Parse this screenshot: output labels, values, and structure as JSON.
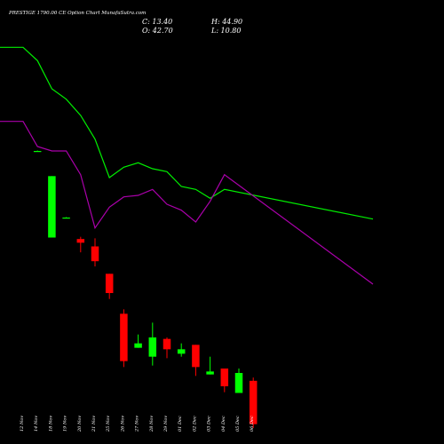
{
  "header": {
    "title": "PRESTIGE 1790.00 CE Option Chart MunafaSutra.com",
    "close": "C: 13.40",
    "open": "O: 42.70",
    "high": "H: 44.90",
    "low": "L: 10.80"
  },
  "colors": {
    "background": "#000000",
    "up": "#00ff00",
    "down": "#ff0000",
    "upper_line": "#00ee00",
    "lower_line": "#aa00aa",
    "text": "#ffffff"
  },
  "chart_data": {
    "type": "candlestick",
    "categories": [
      "12 Nov",
      "14 Nov",
      "18 Nov",
      "19 Nov",
      "20 Nov",
      "21 Nov",
      "25 Nov",
      "26 Nov",
      "27 Nov",
      "28 Nov",
      "29 Nov",
      "01 Dec",
      "02 Dec",
      "03 Dec",
      "04 Dec",
      "05 Dec",
      "06 Dec"
    ],
    "candles": [
      {
        "open": 198.0,
        "high": 198.3,
        "low": 197.7,
        "close": 198.0
      },
      {
        "open": 139.5,
        "high": 181.0,
        "low": 139.5,
        "close": 181.0
      },
      {
        "open": 153.0,
        "high": 153.3,
        "low": 152.7,
        "close": 153.0
      },
      {
        "open": 138.5,
        "high": 140.0,
        "low": 129.5,
        "close": 136.0
      },
      {
        "open": 133.5,
        "high": 139.0,
        "low": 120.0,
        "close": 123.5
      },
      {
        "open": 115.0,
        "high": 115.0,
        "low": 98.0,
        "close": 102.0
      },
      {
        "open": 88.0,
        "high": 91.0,
        "low": 52.0,
        "close": 56.0
      },
      {
        "open": 65.0,
        "high": 74.0,
        "low": 65.0,
        "close": 68.0
      },
      {
        "open": 59.0,
        "high": 82.0,
        "low": 53.0,
        "close": 72.0
      },
      {
        "open": 71.0,
        "high": 72.0,
        "low": 58.0,
        "close": 64.0
      },
      {
        "open": 61.0,
        "high": 68.0,
        "low": 59.0,
        "close": 64.0
      },
      {
        "open": 67.0,
        "high": 67.0,
        "low": 46.0,
        "close": 52.0
      },
      {
        "open": 47.0,
        "high": 59.0,
        "low": 47.0,
        "close": 49.0
      },
      {
        "open": 51.0,
        "high": 51.0,
        "low": 35.0,
        "close": 39.0
      },
      {
        "open": 34.5,
        "high": 51.0,
        "low": 34.5,
        "close": 48.0
      },
      {
        "open": 42.7,
        "high": 44.9,
        "low": 10.8,
        "close": 13.4
      }
    ],
    "candle_slots": [
      1,
      2,
      3,
      4,
      5,
      6,
      7,
      8,
      9,
      10,
      11,
      12,
      13,
      14,
      15,
      16
    ],
    "upper_line": [
      268,
      268,
      259,
      240,
      233,
      222,
      206,
      180,
      187,
      190,
      186,
      184,
      174,
      172,
      166,
      172,
      152
    ],
    "lower_line": [
      218,
      218,
      201,
      198,
      198,
      182,
      146,
      160,
      167,
      168,
      172,
      162,
      158,
      150,
      164,
      182,
      108
    ],
    "ylim": [
      0,
      300
    ]
  }
}
